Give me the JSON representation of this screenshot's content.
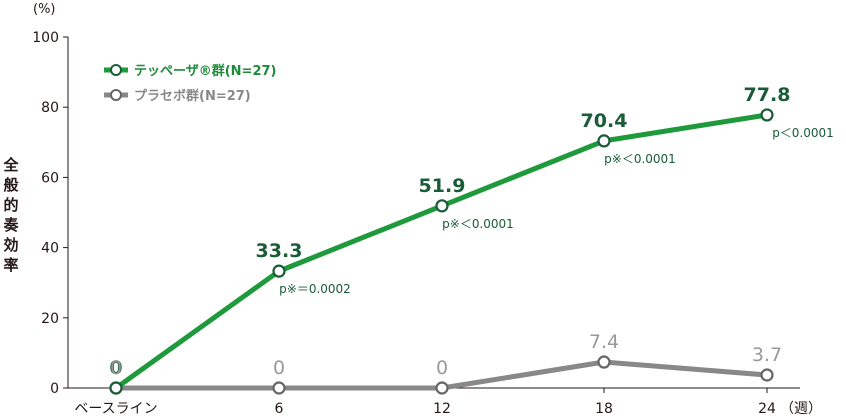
{
  "chart_data": {
    "type": "line",
    "unit_label": "(%)",
    "ylabel": "全般的奏効率",
    "x_unit": "（週）",
    "categories": [
      "ベースライン",
      "6",
      "12",
      "18",
      "24"
    ],
    "ylim": [
      0,
      100
    ],
    "yticks": [
      "0",
      "20",
      "40",
      "60",
      "80",
      "100"
    ],
    "legend_position": "top-left",
    "series": [
      {
        "name": "テッペーザ®群(N=27)",
        "color": "#1e9a3c",
        "values": [
          0,
          33.3,
          51.9,
          70.4,
          77.8
        ],
        "value_labels": [
          "0",
          "33.3",
          "51.9",
          "70.4",
          "77.8"
        ],
        "label_color": "#1a5b38"
      },
      {
        "name": "プラセボ群(N=27)",
        "color": "#888888",
        "values": [
          0,
          0,
          0,
          7.4,
          3.7
        ],
        "value_labels": [
          "0",
          "0",
          "0",
          "7.4",
          "3.7"
        ],
        "label_color": "#999999"
      }
    ],
    "annotations": [
      {
        "index": 1,
        "text": "p※＝0.0002"
      },
      {
        "index": 2,
        "text": "p※＜0.0001"
      },
      {
        "index": 3,
        "text": "p※＜0.0001"
      },
      {
        "index": 4,
        "text": "p＜0.0001"
      }
    ]
  }
}
